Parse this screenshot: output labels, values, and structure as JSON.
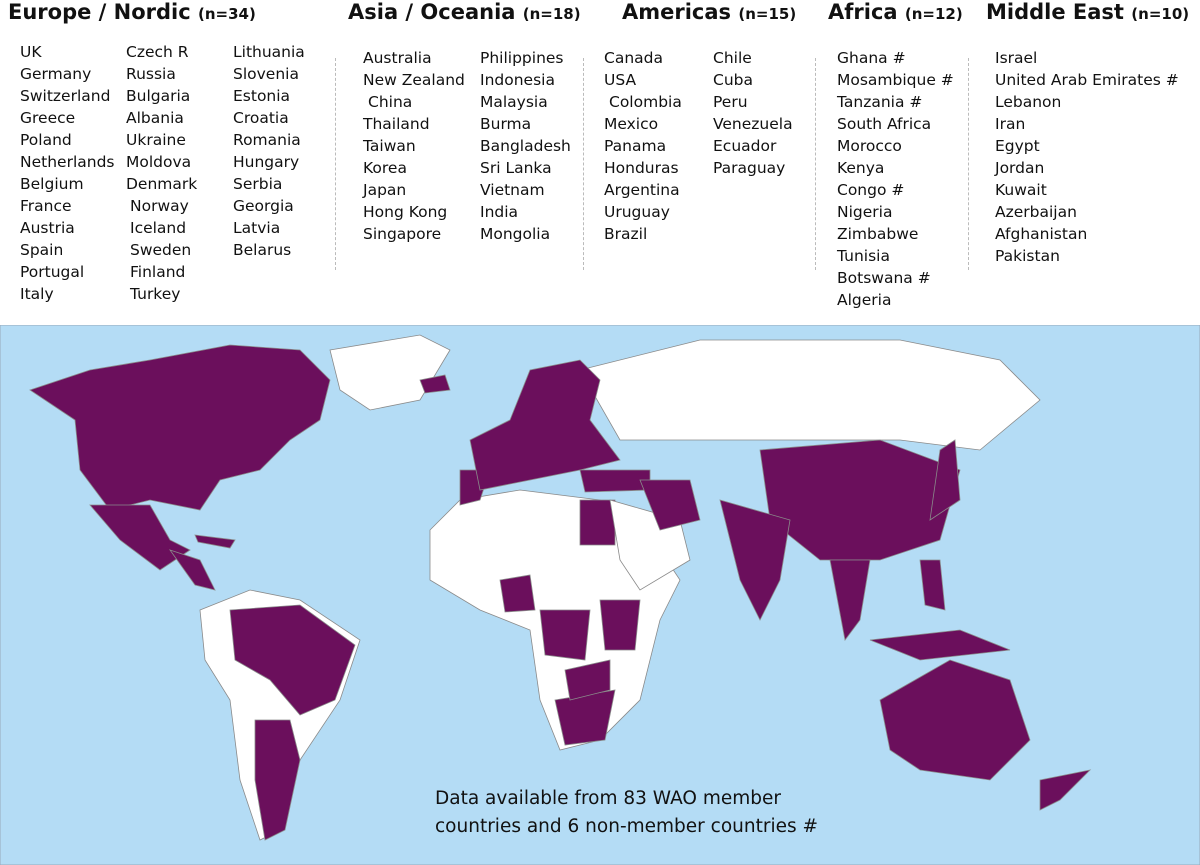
{
  "regions": [
    {
      "name": "Europe / Nordic",
      "count": "(n=34)",
      "columns": [
        [
          "UK",
          "Germany",
          "Switzerland",
          "Greece",
          "Poland",
          "Netherlands",
          "Belgium",
          "France",
          "Austria",
          "Spain",
          "Portugal",
          "Italy"
        ],
        [
          "Czech R",
          "Russia",
          "Bulgaria",
          "Albania",
          "Ukraine",
          "Moldova",
          "Denmark",
          "Norway",
          "Iceland",
          "Sweden",
          "Finland",
          "Turkey"
        ],
        [
          "Lithuania",
          "Slovenia",
          "Estonia",
          "Croatia",
          "Romania",
          "Hungary",
          "Serbia",
          "Georgia",
          "Latvia",
          "Belarus"
        ]
      ]
    },
    {
      "name": "Asia / Oceania",
      "count": "(n=18)",
      "columns": [
        [
          "Australia",
          "New Zealand",
          "China",
          "Thailand",
          "Taiwan",
          "Korea",
          "Japan",
          "Hong Kong",
          "Singapore"
        ],
        [
          "Philippines",
          "Indonesia",
          "Malaysia",
          "Burma",
          "Bangladesh",
          "Sri Lanka",
          "Vietnam",
          "India",
          "Mongolia"
        ]
      ]
    },
    {
      "name": "Americas",
      "count": "(n=15)",
      "columns": [
        [
          "Canada",
          "USA",
          "Colombia",
          "Mexico",
          "Panama",
          "Honduras",
          "Argentina",
          "Uruguay",
          "Brazil"
        ],
        [
          "Chile",
          "Cuba",
          "Peru",
          "Venezuela",
          "Ecuador",
          "Paraguay"
        ]
      ]
    },
    {
      "name": "Africa",
      "count": "(n=12)",
      "columns": [
        [
          "Ghana #",
          "Mosambique #",
          "Tanzania #",
          "South Africa",
          "Morocco",
          "Kenya",
          "Congo #",
          "Nigeria",
          "Zimbabwe",
          "Tunisia",
          "Botswana #",
          "Algeria"
        ]
      ]
    },
    {
      "name": "Middle East",
      "count": "(n=10)",
      "columns": [
        [
          "Israel",
          "United Arab Emirates #",
          "Lebanon",
          "Iran",
          "Egypt",
          "Jordan",
          "Kuwait",
          "Azerbaijan",
          "Afghanistan",
          "Pakistan"
        ]
      ]
    }
  ],
  "note": {
    "lines": [
      "Data available from 83 WAO member",
      "countries and 6 non-member countries #"
    ]
  }
}
